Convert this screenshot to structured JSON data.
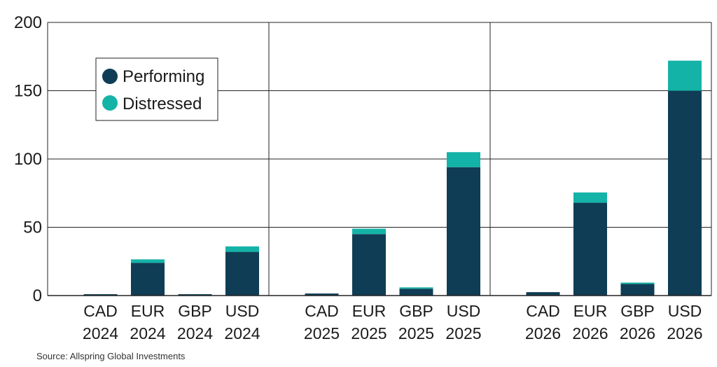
{
  "source": "Source: Allspring Global Investments",
  "colors": {
    "performing": "#0f3d55",
    "distressed": "#14b3a8",
    "grid": "#222222"
  },
  "chart_data": {
    "type": "bar",
    "stacked": true,
    "title": "",
    "xlabel": "",
    "ylabel": "",
    "ylim": [
      0,
      200
    ],
    "yticks": [
      0,
      50,
      100,
      150,
      200
    ],
    "grid": true,
    "legend_position": "top-left",
    "groups": [
      {
        "name": "2024",
        "categories": [
          [
            "CAD",
            "2024"
          ],
          [
            "EUR",
            "2024"
          ],
          [
            "GBP",
            "2024"
          ],
          [
            "USD",
            "2024"
          ]
        ]
      },
      {
        "name": "2025",
        "categories": [
          [
            "CAD",
            "2025"
          ],
          [
            "EUR",
            "2025"
          ],
          [
            "GBP",
            "2025"
          ],
          [
            "USD",
            "2025"
          ]
        ]
      },
      {
        "name": "2026",
        "categories": [
          [
            "CAD",
            "2026"
          ],
          [
            "EUR",
            "2026"
          ],
          [
            "GBP",
            "2026"
          ],
          [
            "USD",
            "2026"
          ]
        ]
      }
    ],
    "series": [
      {
        "name": "Performing",
        "values": [
          1,
          24,
          1,
          32,
          1.5,
          45,
          5,
          94,
          2.5,
          68,
          8.5,
          150
        ]
      },
      {
        "name": "Distressed",
        "values": [
          0,
          2.5,
          0,
          4,
          0,
          4,
          1,
          11,
          0,
          7.5,
          1,
          22
        ]
      }
    ]
  }
}
